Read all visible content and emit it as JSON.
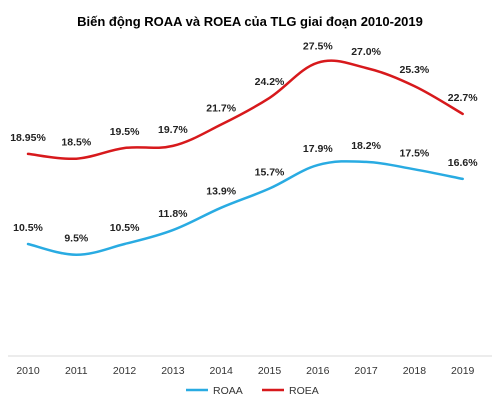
{
  "chart_data": {
    "type": "line",
    "title": "Biến động ROAA và ROEA của TLG giai đoạn 2010-2019",
    "xlabel": "",
    "ylabel": "",
    "categories": [
      "2010",
      "2011",
      "2012",
      "2013",
      "2014",
      "2015",
      "2016",
      "2017",
      "2018",
      "2019"
    ],
    "ylim": [
      0,
      30
    ],
    "grid": false,
    "legend_position": "bottom",
    "series": [
      {
        "name": "ROAA",
        "color": "#29abe2",
        "values": [
          10.5,
          9.5,
          10.5,
          11.8,
          13.9,
          15.7,
          17.9,
          18.2,
          17.5,
          16.6
        ],
        "labels": [
          "10.5%",
          "9.5%",
          "10.5%",
          "11.8%",
          "13.9%",
          "15.7%",
          "17.9%",
          "18.2%",
          "17.5%",
          "16.6%"
        ]
      },
      {
        "name": "ROEA",
        "color": "#d7191c",
        "values": [
          18.95,
          18.5,
          19.5,
          19.7,
          21.7,
          24.2,
          27.5,
          27.0,
          25.3,
          22.7
        ],
        "labels": [
          "18.95%",
          "18.5%",
          "19.5%",
          "19.7%",
          "21.7%",
          "24.2%",
          "27.5%",
          "27.0%",
          "25.3%",
          "22.7%"
        ]
      }
    ]
  }
}
